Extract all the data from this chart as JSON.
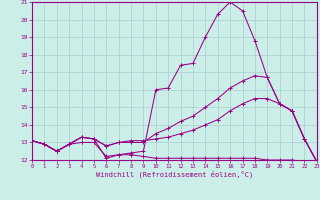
{
  "xlabel": "Windchill (Refroidissement éolien,°C)",
  "background_color": "#cceee8",
  "grid_color": "#aacccc",
  "line_color": "#990088",
  "hours": [
    0,
    1,
    2,
    3,
    4,
    5,
    6,
    7,
    8,
    9,
    10,
    11,
    12,
    13,
    14,
    15,
    16,
    17,
    18,
    19,
    20,
    21,
    22,
    23
  ],
  "line1": [
    13.1,
    12.9,
    12.5,
    12.9,
    13.3,
    13.2,
    12.1,
    12.3,
    12.4,
    12.5,
    16.0,
    16.1,
    17.4,
    17.5,
    19.0,
    20.3,
    21.0,
    20.5,
    18.8,
    16.7,
    15.2,
    14.8,
    13.2,
    11.9
  ],
  "line2": [
    13.1,
    12.9,
    12.5,
    12.9,
    13.3,
    13.2,
    12.8,
    13.0,
    13.0,
    13.0,
    13.5,
    13.8,
    14.2,
    14.5,
    15.0,
    15.5,
    16.1,
    16.5,
    16.8,
    16.7,
    15.2,
    14.8,
    13.2,
    11.9
  ],
  "line3": [
    13.1,
    12.9,
    12.5,
    12.9,
    13.3,
    13.2,
    12.8,
    13.0,
    13.1,
    13.1,
    13.2,
    13.3,
    13.5,
    13.7,
    14.0,
    14.3,
    14.8,
    15.2,
    15.5,
    15.5,
    15.2,
    14.8,
    13.2,
    11.9
  ],
  "line4": [
    13.1,
    12.9,
    12.5,
    12.9,
    13.0,
    13.0,
    12.2,
    12.3,
    12.3,
    12.2,
    12.1,
    12.1,
    12.1,
    12.1,
    12.1,
    12.1,
    12.1,
    12.1,
    12.1,
    12.0,
    12.0,
    12.0,
    11.9,
    11.9
  ],
  "ylim_min": 12,
  "ylim_max": 21,
  "xlim_min": 0,
  "xlim_max": 23
}
